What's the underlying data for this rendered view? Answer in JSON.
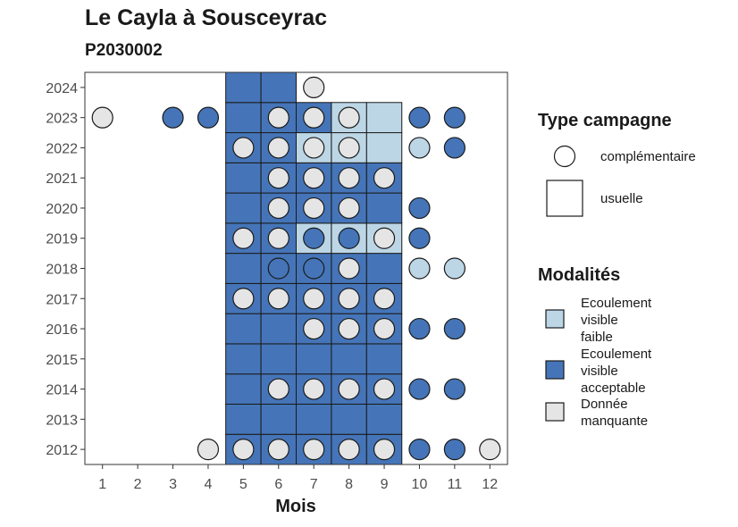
{
  "title": "Le Cayla à Sousceyrac",
  "subtitle": "P2030002",
  "chart_data": {
    "type": "heatmap",
    "xlabel": "Mois",
    "ylabel": "",
    "x_ticks": [
      1,
      2,
      3,
      4,
      5,
      6,
      7,
      8,
      9,
      10,
      11,
      12
    ],
    "y_ticks": [
      2012,
      2013,
      2014,
      2015,
      2016,
      2017,
      2018,
      2019,
      2020,
      2021,
      2022,
      2023,
      2024
    ],
    "xlim": [
      0.5,
      12.5
    ],
    "ylim": [
      2011.5,
      2024.5
    ],
    "grid": false,
    "legend_placement": "right",
    "colors": {
      "Ecoulement visible faible": "#bcd6e6",
      "Ecoulement visible acceptable": "#4575b8",
      "Donnée manquante": "#e5e5e5"
    },
    "legend_shape": {
      "title": "Type campagne",
      "entries": [
        {
          "label": "complémentaire",
          "shape": "circle"
        },
        {
          "label": "usuelle",
          "shape": "square"
        }
      ]
    },
    "legend_fill": {
      "title": "Modalités",
      "entries": [
        {
          "label_lines": [
            "Ecoulement",
            "visible",
            "faible"
          ],
          "color": "#bcd6e6"
        },
        {
          "label_lines": [
            "Ecoulement",
            "visible",
            "acceptable"
          ],
          "color": "#4575b8"
        },
        {
          "label_lines": [
            "Donnée",
            "manquante"
          ],
          "color": "#e5e5e5"
        }
      ]
    },
    "usuelle": [
      {
        "year": 2012,
        "month": 5,
        "mod": "Ecoulement visible acceptable"
      },
      {
        "year": 2012,
        "month": 6,
        "mod": "Ecoulement visible acceptable"
      },
      {
        "year": 2012,
        "month": 7,
        "mod": "Ecoulement visible acceptable"
      },
      {
        "year": 2012,
        "month": 8,
        "mod": "Ecoulement visible acceptable"
      },
      {
        "year": 2012,
        "month": 9,
        "mod": "Ecoulement visible acceptable"
      },
      {
        "year": 2013,
        "month": 5,
        "mod": "Ecoulement visible acceptable"
      },
      {
        "year": 2013,
        "month": 6,
        "mod": "Ecoulement visible acceptable"
      },
      {
        "year": 2013,
        "month": 7,
        "mod": "Ecoulement visible acceptable"
      },
      {
        "year": 2013,
        "month": 8,
        "mod": "Ecoulement visible acceptable"
      },
      {
        "year": 2013,
        "month": 9,
        "mod": "Ecoulement visible acceptable"
      },
      {
        "year": 2014,
        "month": 5,
        "mod": "Ecoulement visible acceptable"
      },
      {
        "year": 2014,
        "month": 6,
        "mod": "Ecoulement visible acceptable"
      },
      {
        "year": 2014,
        "month": 7,
        "mod": "Ecoulement visible acceptable"
      },
      {
        "year": 2014,
        "month": 8,
        "mod": "Ecoulement visible acceptable"
      },
      {
        "year": 2014,
        "month": 9,
        "mod": "Ecoulement visible acceptable"
      },
      {
        "year": 2015,
        "month": 5,
        "mod": "Ecoulement visible acceptable"
      },
      {
        "year": 2015,
        "month": 6,
        "mod": "Ecoulement visible acceptable"
      },
      {
        "year": 2015,
        "month": 7,
        "mod": "Ecoulement visible acceptable"
      },
      {
        "year": 2015,
        "month": 8,
        "mod": "Ecoulement visible acceptable"
      },
      {
        "year": 2015,
        "month": 9,
        "mod": "Ecoulement visible acceptable"
      },
      {
        "year": 2016,
        "month": 5,
        "mod": "Ecoulement visible acceptable"
      },
      {
        "year": 2016,
        "month": 6,
        "mod": "Ecoulement visible acceptable"
      },
      {
        "year": 2016,
        "month": 7,
        "mod": "Ecoulement visible acceptable"
      },
      {
        "year": 2016,
        "month": 8,
        "mod": "Ecoulement visible acceptable"
      },
      {
        "year": 2016,
        "month": 9,
        "mod": "Ecoulement visible acceptable"
      },
      {
        "year": 2017,
        "month": 5,
        "mod": "Ecoulement visible acceptable"
      },
      {
        "year": 2017,
        "month": 6,
        "mod": "Ecoulement visible acceptable"
      },
      {
        "year": 2017,
        "month": 7,
        "mod": "Ecoulement visible acceptable"
      },
      {
        "year": 2017,
        "month": 8,
        "mod": "Ecoulement visible acceptable"
      },
      {
        "year": 2017,
        "month": 9,
        "mod": "Ecoulement visible acceptable"
      },
      {
        "year": 2018,
        "month": 5,
        "mod": "Ecoulement visible acceptable"
      },
      {
        "year": 2018,
        "month": 6,
        "mod": "Ecoulement visible acceptable"
      },
      {
        "year": 2018,
        "month": 7,
        "mod": "Ecoulement visible acceptable"
      },
      {
        "year": 2018,
        "month": 8,
        "mod": "Ecoulement visible acceptable"
      },
      {
        "year": 2018,
        "month": 9,
        "mod": "Ecoulement visible acceptable"
      },
      {
        "year": 2019,
        "month": 5,
        "mod": "Ecoulement visible acceptable"
      },
      {
        "year": 2019,
        "month": 6,
        "mod": "Ecoulement visible acceptable"
      },
      {
        "year": 2019,
        "month": 7,
        "mod": "Ecoulement visible faible"
      },
      {
        "year": 2019,
        "month": 8,
        "mod": "Ecoulement visible faible"
      },
      {
        "year": 2019,
        "month": 9,
        "mod": "Ecoulement visible faible"
      },
      {
        "year": 2020,
        "month": 5,
        "mod": "Ecoulement visible acceptable"
      },
      {
        "year": 2020,
        "month": 6,
        "mod": "Ecoulement visible acceptable"
      },
      {
        "year": 2020,
        "month": 7,
        "mod": "Ecoulement visible acceptable"
      },
      {
        "year": 2020,
        "month": 8,
        "mod": "Ecoulement visible acceptable"
      },
      {
        "year": 2020,
        "month": 9,
        "mod": "Ecoulement visible acceptable"
      },
      {
        "year": 2021,
        "month": 5,
        "mod": "Ecoulement visible acceptable"
      },
      {
        "year": 2021,
        "month": 6,
        "mod": "Ecoulement visible acceptable"
      },
      {
        "year": 2021,
        "month": 7,
        "mod": "Ecoulement visible acceptable"
      },
      {
        "year": 2021,
        "month": 8,
        "mod": "Ecoulement visible acceptable"
      },
      {
        "year": 2021,
        "month": 9,
        "mod": "Ecoulement visible acceptable"
      },
      {
        "year": 2022,
        "month": 5,
        "mod": "Ecoulement visible acceptable"
      },
      {
        "year": 2022,
        "month": 6,
        "mod": "Ecoulement visible acceptable"
      },
      {
        "year": 2022,
        "month": 7,
        "mod": "Ecoulement visible faible"
      },
      {
        "year": 2022,
        "month": 8,
        "mod": "Ecoulement visible faible"
      },
      {
        "year": 2022,
        "month": 9,
        "mod": "Ecoulement visible faible"
      },
      {
        "year": 2023,
        "month": 5,
        "mod": "Ecoulement visible acceptable"
      },
      {
        "year": 2023,
        "month": 6,
        "mod": "Ecoulement visible acceptable"
      },
      {
        "year": 2023,
        "month": 7,
        "mod": "Ecoulement visible acceptable"
      },
      {
        "year": 2023,
        "month": 8,
        "mod": "Ecoulement visible faible"
      },
      {
        "year": 2023,
        "month": 9,
        "mod": "Ecoulement visible faible"
      },
      {
        "year": 2024,
        "month": 5,
        "mod": "Ecoulement visible acceptable"
      },
      {
        "year": 2024,
        "month": 6,
        "mod": "Ecoulement visible acceptable"
      }
    ],
    "complementaire": [
      {
        "year": 2012,
        "month": 4,
        "mod": "Donnée manquante"
      },
      {
        "year": 2012,
        "month": 5,
        "mod": "Donnée manquante"
      },
      {
        "year": 2012,
        "month": 6,
        "mod": "Donnée manquante"
      },
      {
        "year": 2012,
        "month": 7,
        "mod": "Donnée manquante"
      },
      {
        "year": 2012,
        "month": 8,
        "mod": "Donnée manquante"
      },
      {
        "year": 2012,
        "month": 9,
        "mod": "Donnée manquante"
      },
      {
        "year": 2012,
        "month": 10,
        "mod": "Ecoulement visible acceptable"
      },
      {
        "year": 2012,
        "month": 11,
        "mod": "Ecoulement visible acceptable"
      },
      {
        "year": 2012,
        "month": 12,
        "mod": "Donnée manquante"
      },
      {
        "year": 2014,
        "month": 6,
        "mod": "Donnée manquante"
      },
      {
        "year": 2014,
        "month": 7,
        "mod": "Donnée manquante"
      },
      {
        "year": 2014,
        "month": 8,
        "mod": "Donnée manquante"
      },
      {
        "year": 2014,
        "month": 9,
        "mod": "Donnée manquante"
      },
      {
        "year": 2014,
        "month": 10,
        "mod": "Ecoulement visible acceptable"
      },
      {
        "year": 2014,
        "month": 11,
        "mod": "Ecoulement visible acceptable"
      },
      {
        "year": 2016,
        "month": 7,
        "mod": "Donnée manquante"
      },
      {
        "year": 2016,
        "month": 8,
        "mod": "Donnée manquante"
      },
      {
        "year": 2016,
        "month": 9,
        "mod": "Donnée manquante"
      },
      {
        "year": 2016,
        "month": 10,
        "mod": "Ecoulement visible acceptable"
      },
      {
        "year": 2016,
        "month": 11,
        "mod": "Ecoulement visible acceptable"
      },
      {
        "year": 2017,
        "month": 5,
        "mod": "Donnée manquante"
      },
      {
        "year": 2017,
        "month": 6,
        "mod": "Donnée manquante"
      },
      {
        "year": 2017,
        "month": 7,
        "mod": "Donnée manquante"
      },
      {
        "year": 2017,
        "month": 8,
        "mod": "Donnée manquante"
      },
      {
        "year": 2017,
        "month": 9,
        "mod": "Donnée manquante"
      },
      {
        "year": 2018,
        "month": 6,
        "mod": "Ecoulement visible acceptable"
      },
      {
        "year": 2018,
        "month": 7,
        "mod": "Ecoulement visible acceptable"
      },
      {
        "year": 2018,
        "month": 8,
        "mod": "Donnée manquante"
      },
      {
        "year": 2018,
        "month": 10,
        "mod": "Ecoulement visible faible"
      },
      {
        "year": 2018,
        "month": 11,
        "mod": "Ecoulement visible faible"
      },
      {
        "year": 2019,
        "month": 5,
        "mod": "Donnée manquante"
      },
      {
        "year": 2019,
        "month": 6,
        "mod": "Donnée manquante"
      },
      {
        "year": 2019,
        "month": 7,
        "mod": "Ecoulement visible acceptable"
      },
      {
        "year": 2019,
        "month": 8,
        "mod": "Ecoulement visible acceptable"
      },
      {
        "year": 2019,
        "month": 9,
        "mod": "Donnée manquante"
      },
      {
        "year": 2019,
        "month": 10,
        "mod": "Ecoulement visible acceptable"
      },
      {
        "year": 2020,
        "month": 6,
        "mod": "Donnée manquante"
      },
      {
        "year": 2020,
        "month": 7,
        "mod": "Donnée manquante"
      },
      {
        "year": 2020,
        "month": 8,
        "mod": "Donnée manquante"
      },
      {
        "year": 2020,
        "month": 10,
        "mod": "Ecoulement visible acceptable"
      },
      {
        "year": 2021,
        "month": 6,
        "mod": "Donnée manquante"
      },
      {
        "year": 2021,
        "month": 7,
        "mod": "Donnée manquante"
      },
      {
        "year": 2021,
        "month": 8,
        "mod": "Donnée manquante"
      },
      {
        "year": 2021,
        "month": 9,
        "mod": "Donnée manquante"
      },
      {
        "year": 2022,
        "month": 5,
        "mod": "Donnée manquante"
      },
      {
        "year": 2022,
        "month": 6,
        "mod": "Donnée manquante"
      },
      {
        "year": 2022,
        "month": 7,
        "mod": "Donnée manquante"
      },
      {
        "year": 2022,
        "month": 8,
        "mod": "Donnée manquante"
      },
      {
        "year": 2022,
        "month": 10,
        "mod": "Ecoulement visible faible"
      },
      {
        "year": 2022,
        "month": 11,
        "mod": "Ecoulement visible acceptable"
      },
      {
        "year": 2023,
        "month": 1,
        "mod": "Donnée manquante"
      },
      {
        "year": 2023,
        "month": 3,
        "mod": "Ecoulement visible acceptable"
      },
      {
        "year": 2023,
        "month": 4,
        "mod": "Ecoulement visible acceptable"
      },
      {
        "year": 2023,
        "month": 6,
        "mod": "Donnée manquante"
      },
      {
        "year": 2023,
        "month": 7,
        "mod": "Donnée manquante"
      },
      {
        "year": 2023,
        "month": 8,
        "mod": "Donnée manquante"
      },
      {
        "year": 2023,
        "month": 10,
        "mod": "Ecoulement visible acceptable"
      },
      {
        "year": 2023,
        "month": 11,
        "mod": "Ecoulement visible acceptable"
      },
      {
        "year": 2024,
        "month": 7,
        "mod": "Donnée manquante"
      }
    ]
  }
}
